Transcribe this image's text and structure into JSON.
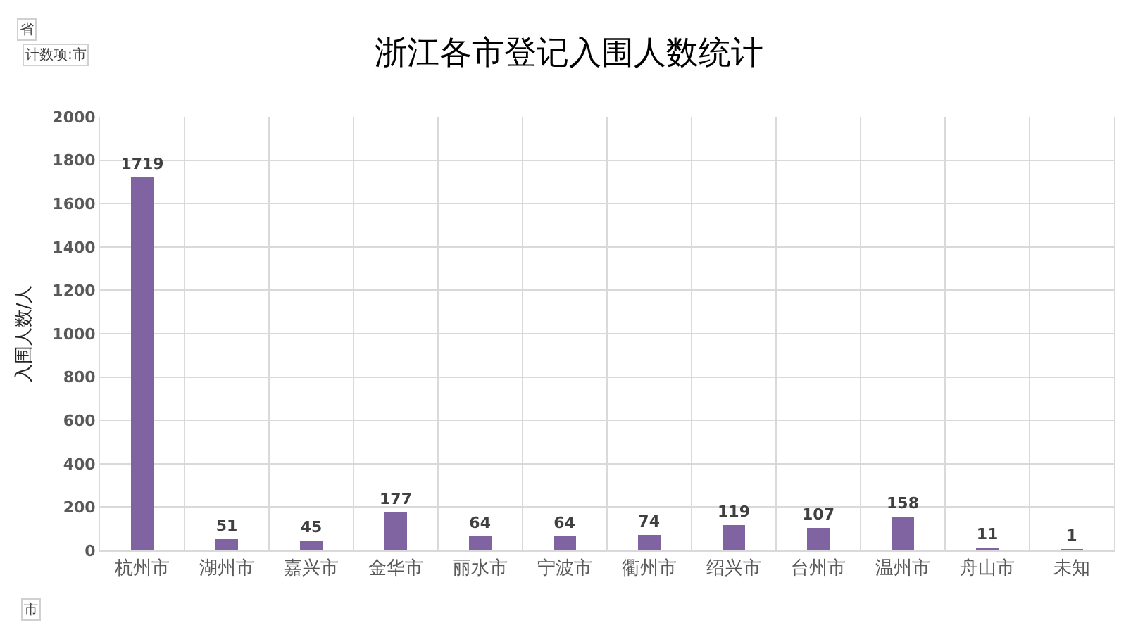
{
  "chart_data": {
    "type": "bar",
    "title": "浙江各市登记入围人数统计",
    "ylabel": "入围人数/人",
    "categories": [
      "杭州市",
      "湖州市",
      "嘉兴市",
      "金华市",
      "丽水市",
      "宁波市",
      "衢州市",
      "绍兴市",
      "台州市",
      "温州市",
      "舟山市",
      "未知"
    ],
    "values": [
      1719,
      51,
      45,
      177,
      64,
      64,
      74,
      119,
      107,
      158,
      11,
      1
    ],
    "color": "#8064a2",
    "ylim": [
      0,
      2000
    ],
    "yticks": [
      0,
      200,
      400,
      600,
      800,
      1000,
      1200,
      1400,
      1600,
      1800,
      2000
    ],
    "grid": true,
    "data_labels": true,
    "annotations": [
      "省",
      "计数项:市",
      "市"
    ]
  }
}
